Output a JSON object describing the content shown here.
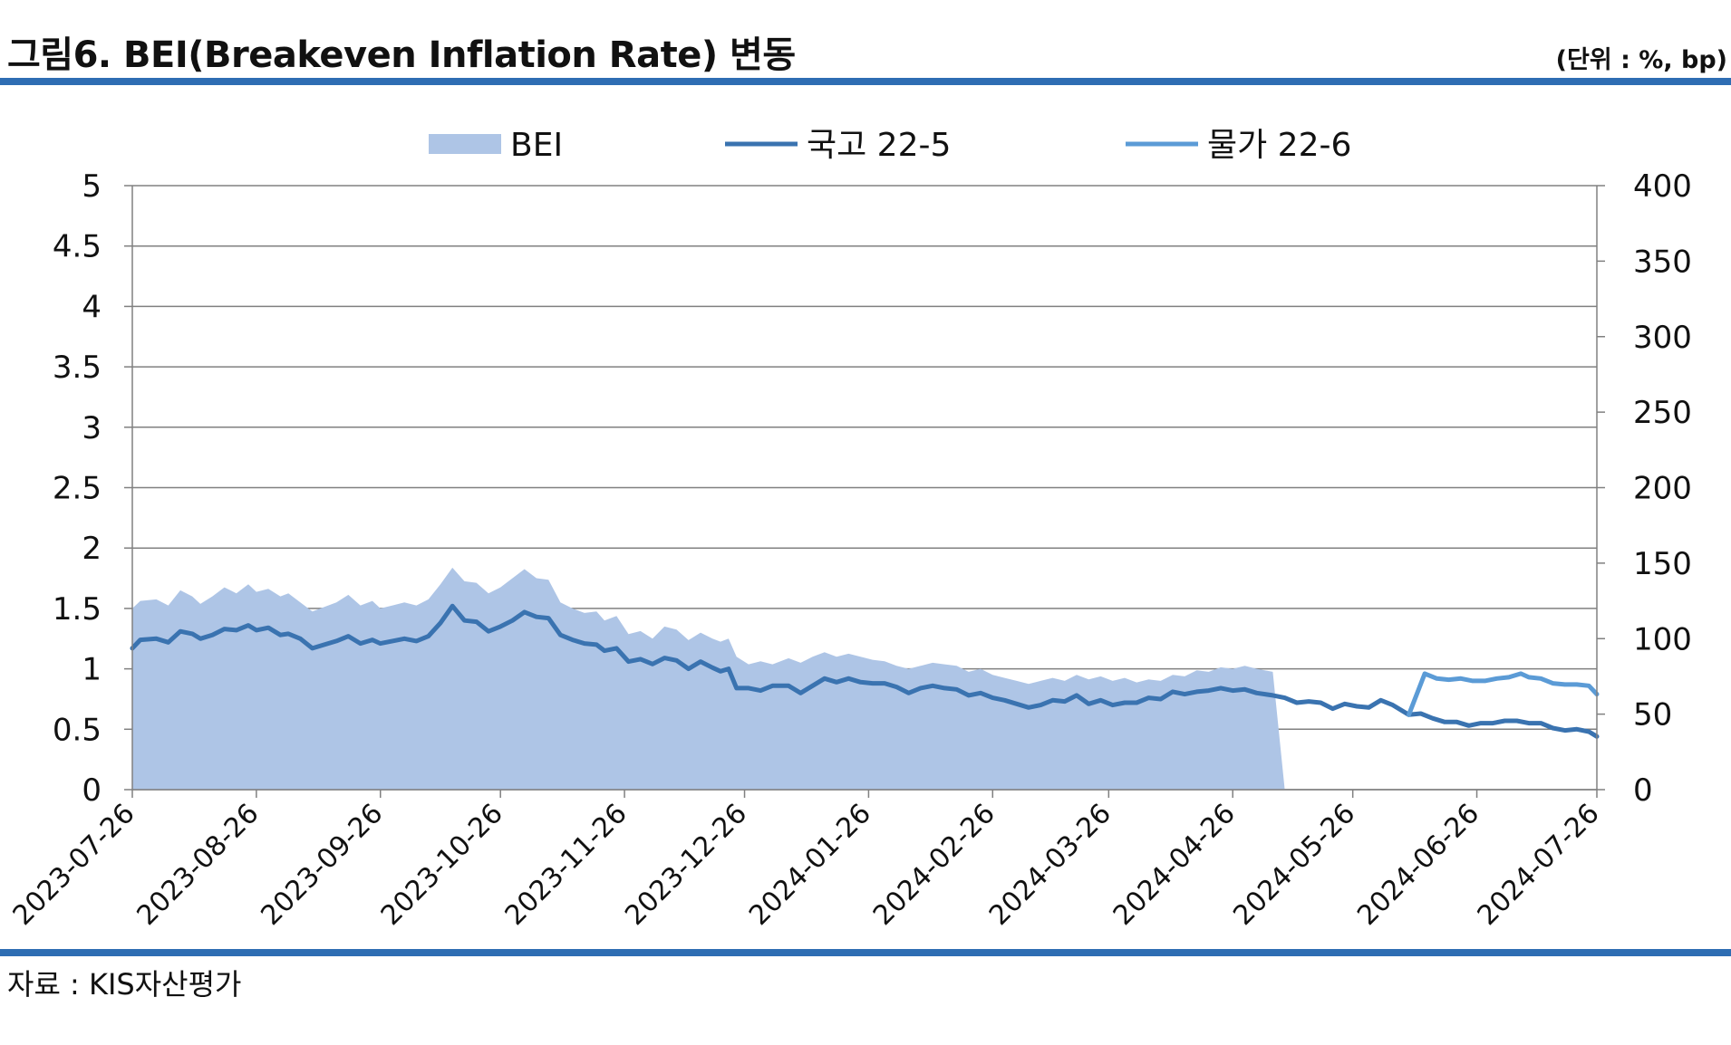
{
  "header": {
    "title": "그림6. BEI(Breakeven Inflation Rate) 변동",
    "unit": "(단위 : %, bp)"
  },
  "footer": {
    "source": "자료 : KIS자산평가"
  },
  "colors": {
    "rule": "#2e6db3",
    "bei_area": "#aec5e6",
    "ktb": "#3a73b0",
    "inflation_linked": "#5b9bd6",
    "grid": "#808080"
  },
  "chart_data": {
    "type": "line",
    "x_tick_labels": [
      "2023-07-26",
      "2023-08-26",
      "2023-09-26",
      "2023-10-26",
      "2023-11-26",
      "2023-12-26",
      "2024-01-26",
      "2024-02-26",
      "2024-03-26",
      "2024-04-26",
      "2024-05-26",
      "2024-06-26",
      "2024-07-26"
    ],
    "x_range": [
      "2023-07-26",
      "2024-07-26"
    ],
    "y_left": {
      "ticks": [
        "0",
        "0.5",
        "1",
        "1.5",
        "2",
        "2.5",
        "3",
        "3.5",
        "4",
        "4.5",
        "5"
      ],
      "range": [
        0,
        5
      ]
    },
    "y_right": {
      "ticks": [
        "0",
        "50",
        "100",
        "150",
        "200",
        "250",
        "300",
        "350",
        "400"
      ],
      "range": [
        0,
        400
      ]
    },
    "grid": "horizontal",
    "legend_position": "top",
    "series": [
      {
        "name": "BEI",
        "type": "area",
        "axis": "right",
        "points": [
          [
            "2023-07-26",
            120
          ],
          [
            "2023-07-28",
            125
          ],
          [
            "2023-08-01",
            126
          ],
          [
            "2023-08-04",
            122
          ],
          [
            "2023-08-07",
            132
          ],
          [
            "2023-08-10",
            128
          ],
          [
            "2023-08-12",
            123
          ],
          [
            "2023-08-15",
            128
          ],
          [
            "2023-08-18",
            134
          ],
          [
            "2023-08-21",
            130
          ],
          [
            "2023-08-24",
            136
          ],
          [
            "2023-08-26",
            131
          ],
          [
            "2023-08-29",
            133
          ],
          [
            "2023-09-01",
            128
          ],
          [
            "2023-09-03",
            130
          ],
          [
            "2023-09-06",
            124
          ],
          [
            "2023-09-09",
            118
          ],
          [
            "2023-09-12",
            121
          ],
          [
            "2023-09-15",
            124
          ],
          [
            "2023-09-18",
            129
          ],
          [
            "2023-09-21",
            122
          ],
          [
            "2023-09-24",
            125
          ],
          [
            "2023-09-26",
            120
          ],
          [
            "2023-09-29",
            122
          ],
          [
            "2023-10-02",
            124
          ],
          [
            "2023-10-05",
            122
          ],
          [
            "2023-10-08",
            126
          ],
          [
            "2023-10-11",
            136
          ],
          [
            "2023-10-14",
            147
          ],
          [
            "2023-10-17",
            138
          ],
          [
            "2023-10-20",
            137
          ],
          [
            "2023-10-23",
            130
          ],
          [
            "2023-10-26",
            134
          ],
          [
            "2023-10-29",
            140
          ],
          [
            "2023-11-01",
            146
          ],
          [
            "2023-11-04",
            140
          ],
          [
            "2023-11-07",
            139
          ],
          [
            "2023-11-10",
            124
          ],
          [
            "2023-11-13",
            120
          ],
          [
            "2023-11-16",
            117
          ],
          [
            "2023-11-19",
            118
          ],
          [
            "2023-11-21",
            112
          ],
          [
            "2023-11-24",
            115
          ],
          [
            "2023-11-27",
            103
          ],
          [
            "2023-11-30",
            105
          ],
          [
            "2023-12-03",
            100
          ],
          [
            "2023-12-06",
            108
          ],
          [
            "2023-12-09",
            106
          ],
          [
            "2023-12-12",
            99
          ],
          [
            "2023-12-15",
            104
          ],
          [
            "2023-12-18",
            100
          ],
          [
            "2023-12-20",
            98
          ],
          [
            "2023-12-22",
            100
          ],
          [
            "2023-12-24",
            88
          ],
          [
            "2023-12-27",
            83
          ],
          [
            "2023-12-30",
            85
          ],
          [
            "2024-01-02",
            83
          ],
          [
            "2024-01-06",
            87
          ],
          [
            "2024-01-09",
            84
          ],
          [
            "2024-01-12",
            88
          ],
          [
            "2024-01-15",
            91
          ],
          [
            "2024-01-18",
            88
          ],
          [
            "2024-01-21",
            90
          ],
          [
            "2024-01-24",
            88
          ],
          [
            "2024-01-27",
            86
          ],
          [
            "2024-01-30",
            85
          ],
          [
            "2024-02-02",
            82
          ],
          [
            "2024-02-05",
            80
          ],
          [
            "2024-02-08",
            82
          ],
          [
            "2024-02-11",
            84
          ],
          [
            "2024-02-14",
            83
          ],
          [
            "2024-02-17",
            82
          ],
          [
            "2024-02-20",
            78
          ],
          [
            "2024-02-23",
            80
          ],
          [
            "2024-02-26",
            76
          ],
          [
            "2024-02-29",
            74
          ],
          [
            "2024-03-03",
            72
          ],
          [
            "2024-03-06",
            70
          ],
          [
            "2024-03-09",
            72
          ],
          [
            "2024-03-12",
            74
          ],
          [
            "2024-03-15",
            72
          ],
          [
            "2024-03-18",
            76
          ],
          [
            "2024-03-21",
            73
          ],
          [
            "2024-03-24",
            75
          ],
          [
            "2024-03-27",
            72
          ],
          [
            "2024-03-30",
            74
          ],
          [
            "2024-04-02",
            71
          ],
          [
            "2024-04-05",
            73
          ],
          [
            "2024-04-08",
            72
          ],
          [
            "2024-04-11",
            76
          ],
          [
            "2024-04-14",
            75
          ],
          [
            "2024-04-17",
            79
          ],
          [
            "2024-04-20",
            78
          ],
          [
            "2024-04-23",
            81
          ],
          [
            "2024-04-26",
            80
          ],
          [
            "2024-04-29",
            82
          ],
          [
            "2024-05-02",
            80
          ],
          [
            "2024-05-06",
            78
          ],
          [
            "2024-05-09",
            0
          ]
        ]
      },
      {
        "name": "국고 22-5",
        "type": "line",
        "axis": "left",
        "points": [
          [
            "2023-07-26",
            1.17
          ],
          [
            "2023-07-28",
            1.24
          ],
          [
            "2023-08-01",
            1.25
          ],
          [
            "2023-08-04",
            1.22
          ],
          [
            "2023-08-07",
            1.31
          ],
          [
            "2023-08-10",
            1.29
          ],
          [
            "2023-08-12",
            1.25
          ],
          [
            "2023-08-15",
            1.28
          ],
          [
            "2023-08-18",
            1.33
          ],
          [
            "2023-08-21",
            1.32
          ],
          [
            "2023-08-24",
            1.36
          ],
          [
            "2023-08-26",
            1.32
          ],
          [
            "2023-08-29",
            1.34
          ],
          [
            "2023-09-01",
            1.28
          ],
          [
            "2023-09-03",
            1.29
          ],
          [
            "2023-09-06",
            1.25
          ],
          [
            "2023-09-09",
            1.17
          ],
          [
            "2023-09-12",
            1.2
          ],
          [
            "2023-09-15",
            1.23
          ],
          [
            "2023-09-18",
            1.27
          ],
          [
            "2023-09-21",
            1.21
          ],
          [
            "2023-09-24",
            1.24
          ],
          [
            "2023-09-26",
            1.21
          ],
          [
            "2023-09-29",
            1.23
          ],
          [
            "2023-10-02",
            1.25
          ],
          [
            "2023-10-05",
            1.23
          ],
          [
            "2023-10-08",
            1.27
          ],
          [
            "2023-10-11",
            1.38
          ],
          [
            "2023-10-14",
            1.52
          ],
          [
            "2023-10-17",
            1.4
          ],
          [
            "2023-10-20",
            1.39
          ],
          [
            "2023-10-23",
            1.31
          ],
          [
            "2023-10-26",
            1.35
          ],
          [
            "2023-10-29",
            1.4
          ],
          [
            "2023-11-01",
            1.47
          ],
          [
            "2023-11-04",
            1.43
          ],
          [
            "2023-11-07",
            1.42
          ],
          [
            "2023-11-10",
            1.28
          ],
          [
            "2023-11-13",
            1.24
          ],
          [
            "2023-11-16",
            1.21
          ],
          [
            "2023-11-19",
            1.2
          ],
          [
            "2023-11-21",
            1.15
          ],
          [
            "2023-11-24",
            1.17
          ],
          [
            "2023-11-27",
            1.06
          ],
          [
            "2023-11-30",
            1.08
          ],
          [
            "2023-12-03",
            1.04
          ],
          [
            "2023-12-06",
            1.09
          ],
          [
            "2023-12-09",
            1.07
          ],
          [
            "2023-12-12",
            1.0
          ],
          [
            "2023-12-15",
            1.06
          ],
          [
            "2023-12-18",
            1.01
          ],
          [
            "2023-12-20",
            0.98
          ],
          [
            "2023-12-22",
            1.0
          ],
          [
            "2023-12-24",
            0.84
          ],
          [
            "2023-12-27",
            0.84
          ],
          [
            "2023-12-30",
            0.82
          ],
          [
            "2024-01-02",
            0.86
          ],
          [
            "2024-01-06",
            0.86
          ],
          [
            "2024-01-09",
            0.8
          ],
          [
            "2024-01-12",
            0.86
          ],
          [
            "2024-01-15",
            0.92
          ],
          [
            "2024-01-18",
            0.89
          ],
          [
            "2024-01-21",
            0.92
          ],
          [
            "2024-01-24",
            0.89
          ],
          [
            "2024-01-27",
            0.88
          ],
          [
            "2024-01-30",
            0.88
          ],
          [
            "2024-02-02",
            0.85
          ],
          [
            "2024-02-05",
            0.8
          ],
          [
            "2024-02-08",
            0.84
          ],
          [
            "2024-02-11",
            0.86
          ],
          [
            "2024-02-14",
            0.84
          ],
          [
            "2024-02-17",
            0.83
          ],
          [
            "2024-02-20",
            0.78
          ],
          [
            "2024-02-23",
            0.8
          ],
          [
            "2024-02-26",
            0.76
          ],
          [
            "2024-02-29",
            0.74
          ],
          [
            "2024-03-03",
            0.71
          ],
          [
            "2024-03-06",
            0.68
          ],
          [
            "2024-03-09",
            0.7
          ],
          [
            "2024-03-12",
            0.74
          ],
          [
            "2024-03-15",
            0.73
          ],
          [
            "2024-03-18",
            0.78
          ],
          [
            "2024-03-21",
            0.71
          ],
          [
            "2024-03-24",
            0.74
          ],
          [
            "2024-03-27",
            0.7
          ],
          [
            "2024-03-30",
            0.72
          ],
          [
            "2024-04-02",
            0.72
          ],
          [
            "2024-04-05",
            0.76
          ],
          [
            "2024-04-08",
            0.75
          ],
          [
            "2024-04-11",
            0.81
          ],
          [
            "2024-04-14",
            0.79
          ],
          [
            "2024-04-17",
            0.81
          ],
          [
            "2024-04-20",
            0.82
          ],
          [
            "2024-04-23",
            0.84
          ],
          [
            "2024-04-26",
            0.82
          ],
          [
            "2024-04-29",
            0.83
          ],
          [
            "2024-05-02",
            0.8
          ],
          [
            "2024-05-06",
            0.78
          ],
          [
            "2024-05-09",
            0.76
          ],
          [
            "2024-05-12",
            0.72
          ],
          [
            "2024-05-15",
            0.73
          ],
          [
            "2024-05-18",
            0.72
          ],
          [
            "2024-05-21",
            0.67
          ],
          [
            "2024-05-24",
            0.71
          ],
          [
            "2024-05-27",
            0.69
          ],
          [
            "2024-05-30",
            0.68
          ],
          [
            "2024-06-02",
            0.74
          ],
          [
            "2024-06-05",
            0.7
          ],
          [
            "2024-06-09",
            0.62
          ],
          [
            "2024-06-12",
            0.63
          ],
          [
            "2024-06-15",
            0.59
          ],
          [
            "2024-06-18",
            0.56
          ],
          [
            "2024-06-21",
            0.56
          ],
          [
            "2024-06-24",
            0.53
          ],
          [
            "2024-06-27",
            0.55
          ],
          [
            "2024-06-30",
            0.55
          ],
          [
            "2024-07-03",
            0.57
          ],
          [
            "2024-07-06",
            0.57
          ],
          [
            "2024-07-09",
            0.55
          ],
          [
            "2024-07-12",
            0.55
          ],
          [
            "2024-07-15",
            0.51
          ],
          [
            "2024-07-18",
            0.49
          ],
          [
            "2024-07-21",
            0.5
          ],
          [
            "2024-07-24",
            0.48
          ],
          [
            "2024-07-26",
            0.44
          ]
        ]
      },
      {
        "name": "물가 22-6",
        "type": "line",
        "axis": "left",
        "points": [
          [
            "2024-06-09",
            0.62
          ],
          [
            "2024-06-13",
            0.96
          ],
          [
            "2024-06-16",
            0.92
          ],
          [
            "2024-06-19",
            0.91
          ],
          [
            "2024-06-22",
            0.92
          ],
          [
            "2024-06-25",
            0.9
          ],
          [
            "2024-06-28",
            0.9
          ],
          [
            "2024-07-01",
            0.92
          ],
          [
            "2024-07-04",
            0.93
          ],
          [
            "2024-07-07",
            0.96
          ],
          [
            "2024-07-09",
            0.93
          ],
          [
            "2024-07-12",
            0.92
          ],
          [
            "2024-07-15",
            0.88
          ],
          [
            "2024-07-18",
            0.87
          ],
          [
            "2024-07-21",
            0.87
          ],
          [
            "2024-07-24",
            0.86
          ],
          [
            "2024-07-26",
            0.79
          ]
        ]
      }
    ]
  }
}
